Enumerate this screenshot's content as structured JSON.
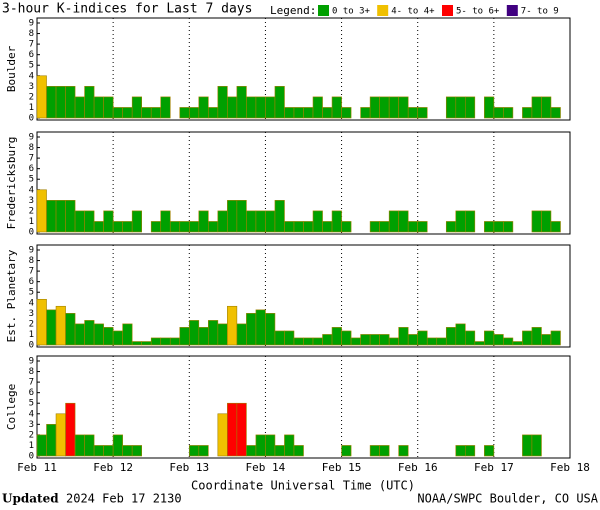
{
  "chart_data": {
    "type": "bar",
    "title": "3-hour K-indices for Last 7 days",
    "legend_title": "Legend:",
    "legend": [
      {
        "label": "0 to 3+",
        "color": "#00a000",
        "from": 0
      },
      {
        "label": "4- to 4+",
        "color": "#f0c000",
        "from": 3.67
      },
      {
        "label": "5- to 6+",
        "color": "#ff0000",
        "from": 4.67
      },
      {
        "label": "7- to 9",
        "color": "#400080",
        "from": 6.67
      }
    ],
    "xtick_labels": [
      "Feb 11",
      "Feb 12",
      "Feb 13",
      "Feb 14",
      "Feb 15",
      "Feb 16",
      "Feb 17",
      "Feb 18"
    ],
    "xlabel": "Coordinate Universal Time (UTC)",
    "ylim": [
      0,
      9
    ],
    "yticks": [
      0,
      1,
      2,
      3,
      4,
      5,
      6,
      7,
      8,
      9
    ],
    "panels": [
      {
        "name": "Boulder",
        "values": [
          4,
          3,
          3,
          3,
          2,
          3,
          2,
          2,
          1,
          1,
          2,
          1,
          1,
          2,
          0,
          1,
          1,
          2,
          1,
          3,
          2,
          3,
          2,
          2,
          2,
          3,
          1,
          1,
          1,
          2,
          1,
          2,
          1,
          0,
          1,
          2,
          2,
          2,
          2,
          1,
          1,
          0,
          0,
          2,
          2,
          2,
          0,
          2,
          1,
          1,
          0,
          1,
          2,
          2,
          1,
          0
        ]
      },
      {
        "name": "Fredericksburg",
        "values": [
          4,
          3,
          3,
          3,
          2,
          2,
          1,
          2,
          1,
          1,
          2,
          0,
          1,
          2,
          1,
          1,
          1,
          2,
          1,
          2,
          3,
          3,
          2,
          2,
          2,
          3,
          1,
          1,
          1,
          2,
          1,
          2,
          1,
          0,
          0,
          1,
          1,
          2,
          2,
          1,
          1,
          0,
          0,
          1,
          2,
          2,
          0,
          1,
          1,
          1,
          0,
          0,
          2,
          2,
          1,
          0
        ]
      },
      {
        "name": "Est. Planetary",
        "values": [
          4.33,
          3.33,
          3.67,
          3,
          2,
          2.33,
          2,
          1.67,
          1.33,
          2,
          0.33,
          0.33,
          0.67,
          0.67,
          0.67,
          1.67,
          2.33,
          1.67,
          2.33,
          2,
          3.67,
          2,
          3,
          3.33,
          3,
          1.33,
          1.33,
          0.67,
          0.67,
          0.67,
          1,
          1.67,
          1.33,
          0.67,
          1,
          1,
          1,
          0.67,
          1.67,
          1,
          1.33,
          0.67,
          0.67,
          1.67,
          2,
          1.33,
          0.33,
          1.33,
          1,
          0.67,
          0.33,
          1.33,
          1.67,
          1,
          1.33,
          null
        ]
      },
      {
        "name": "College",
        "values": [
          2,
          3,
          4,
          5,
          2,
          2,
          1,
          1,
          2,
          1,
          1,
          0,
          0,
          0,
          0,
          0,
          1,
          1,
          0,
          4,
          5,
          5,
          1,
          2,
          2,
          1,
          2,
          1,
          0,
          0,
          0,
          0,
          1,
          0,
          0,
          1,
          1,
          0,
          1,
          0,
          0,
          0,
          0,
          0,
          1,
          1,
          0,
          1,
          0,
          0,
          0,
          2,
          2,
          0,
          0,
          0
        ]
      }
    ],
    "footer": {
      "updated_label": "Updated",
      "updated": "2024 Feb 17 2130",
      "credit": "NOAA/SWPC Boulder, CO USA"
    }
  }
}
